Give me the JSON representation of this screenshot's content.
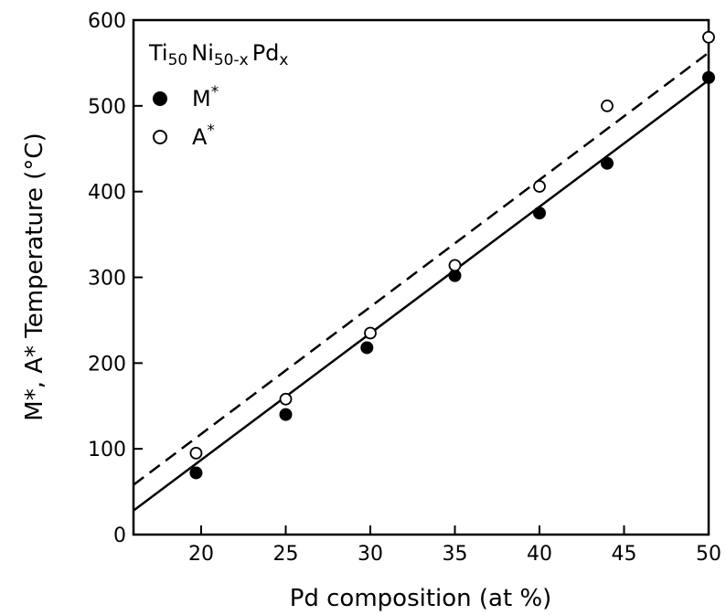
{
  "chart_data": {
    "type": "scatter",
    "title": "",
    "xlabel": "Pd composition (at %)",
    "ylabel": "M*, A*  Temperature (°C)",
    "xlim": [
      16,
      50
    ],
    "ylim": [
      0,
      600
    ],
    "xticks": [
      20,
      25,
      30,
      35,
      40,
      45,
      50
    ],
    "yticks": [
      0,
      100,
      200,
      300,
      400,
      500,
      600
    ],
    "grid": false,
    "legend_position": "top-left",
    "legend_title": {
      "base1": "Ti",
      "sub1": "50",
      "base2": "Ni",
      "sub2": "50-x",
      "base3": "Pd",
      "sub3": "x"
    },
    "series": [
      {
        "name": "M*",
        "label_base": "M",
        "label_sup": "*",
        "marker": "filled-circle",
        "fit_line": "solid",
        "x": [
          19.7,
          25,
          29.8,
          35,
          40,
          44,
          50
        ],
        "y": [
          72,
          140,
          218,
          302,
          375,
          433,
          533
        ],
        "fit": [
          [
            16,
            28
          ],
          [
            50,
            530
          ]
        ]
      },
      {
        "name": "A*",
        "label_base": "A",
        "label_sup": "*",
        "marker": "open-circle",
        "fit_line": "dashed",
        "x": [
          19.7,
          25,
          30,
          35,
          40,
          44,
          50
        ],
        "y": [
          95,
          158,
          235,
          314,
          406,
          500,
          580
        ],
        "fit": [
          [
            16,
            58
          ],
          [
            50,
            562
          ]
        ]
      }
    ]
  }
}
